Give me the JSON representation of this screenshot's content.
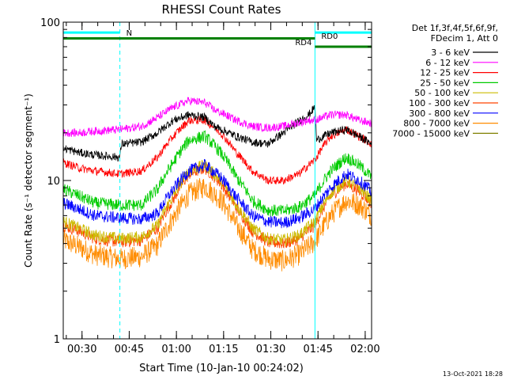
{
  "chart_data": {
    "type": "line",
    "title": "RHESSI Count Rates",
    "xlabel": "Start Time (10-Jan-10 00:24:02)",
    "ylabel": "Count Rate (s⁻¹ detector segment⁻¹)",
    "yscale": "log",
    "ylim": [
      1,
      100
    ],
    "xlim_minutes_after_start": [
      0,
      98
    ],
    "x_ticks": [
      "00:30",
      "00:45",
      "01:00",
      "01:15",
      "01:30",
      "01:45",
      "02:00"
    ],
    "y_ticks": [
      "1",
      "10",
      "100"
    ],
    "x_unit": "minutes after 00:24:02",
    "legend_header": [
      "Det 1f,3f,4f,5f,6f,9f,",
      "FDecim 1, Att 0"
    ],
    "legend_position": "right",
    "footer": "13-Oct-2021 18:28",
    "annotations": {
      "night_label": "N",
      "saa_labels": [
        "RD0",
        "RD4"
      ],
      "night_bars": [
        [
          0,
          18
        ],
        [
          80,
          98
        ]
      ],
      "night_bar_level": 86,
      "rd0_bar": [
        0,
        80
      ],
      "rd0_level": 79,
      "rd4_bar": [
        80,
        98
      ],
      "rd4_level": 70,
      "cyan_vlines": [
        0,
        80
      ],
      "dashed_vlines": [
        18,
        98
      ],
      "colors": {
        "night": "#00ffff",
        "saa": "#008000"
      }
    },
    "series": [
      {
        "name": "3 - 6 keV",
        "color": "#000000",
        "x": [
          0,
          5,
          10,
          18,
          18.5,
          25,
          30,
          35,
          40,
          45,
          48,
          55,
          60,
          65,
          70,
          78,
          80,
          80.5,
          85,
          90,
          94,
          98
        ],
        "y": [
          16,
          15,
          14.5,
          14,
          17,
          17.5,
          20,
          24,
          26,
          25,
          22,
          19,
          17.5,
          17,
          20,
          26,
          29,
          18,
          20,
          21,
          19,
          17
        ]
      },
      {
        "name": "6 - 12 keV",
        "color": "#ff00ff",
        "x": [
          0,
          5,
          10,
          18,
          25,
          30,
          35,
          40,
          45,
          48,
          55,
          60,
          65,
          70,
          78,
          80,
          85,
          90,
          94,
          98
        ],
        "y": [
          20,
          20,
          20.5,
          21,
          22,
          25,
          29,
          32,
          31,
          28,
          24,
          22,
          21.5,
          22,
          24,
          24,
          26,
          26,
          24,
          23
        ]
      },
      {
        "name": "12 - 25 keV",
        "color": "#ff0000",
        "x": [
          0,
          5,
          10,
          18,
          25,
          30,
          35,
          40,
          45,
          50,
          55,
          60,
          65,
          70,
          75,
          80,
          85,
          90,
          94,
          98
        ],
        "y": [
          13,
          12,
          11.5,
          11,
          11.5,
          14,
          19,
          24,
          24,
          20,
          15,
          11.5,
          10,
          10,
          11,
          13.5,
          19,
          21,
          19,
          17
        ]
      },
      {
        "name": "25 - 50 keV",
        "color": "#00cc00",
        "x": [
          0,
          5,
          10,
          18,
          25,
          30,
          35,
          40,
          45,
          50,
          55,
          60,
          65,
          70,
          75,
          80,
          85,
          90,
          94,
          98
        ],
        "y": [
          8.8,
          8,
          7.2,
          7,
          7,
          8.8,
          13,
          18,
          19,
          15,
          10.5,
          7.5,
          6.5,
          6.4,
          6.8,
          8,
          11.5,
          14,
          12.5,
          10.5
        ]
      },
      {
        "name": "50 - 100 keV",
        "color": "#ccbb00",
        "x": [
          0,
          5,
          10,
          18,
          25,
          30,
          35,
          40,
          45,
          50,
          55,
          60,
          65,
          70,
          75,
          80,
          85,
          90,
          94,
          98
        ],
        "y": [
          5.5,
          5,
          4.5,
          4.3,
          4.4,
          5.2,
          8,
          11.5,
          12.5,
          10,
          7,
          5,
          4.3,
          4.2,
          4.5,
          5.5,
          8.3,
          10,
          9,
          7.5
        ]
      },
      {
        "name": "100 - 300 keV",
        "color": "#ff4400",
        "x": [
          0,
          5,
          10,
          18,
          25,
          30,
          35,
          40,
          45,
          50,
          55,
          60,
          65,
          70,
          75,
          80,
          85,
          90,
          94,
          98
        ],
        "y": [
          5.2,
          4.8,
          4.3,
          4.1,
          4.2,
          5,
          7.6,
          11,
          12,
          9.6,
          6.7,
          4.8,
          4.1,
          4,
          4.3,
          5.2,
          8,
          9.6,
          8.6,
          7.2
        ]
      },
      {
        "name": "300 - 800 keV",
        "color": "#0000ff",
        "x": [
          0,
          5,
          10,
          18,
          25,
          30,
          35,
          40,
          45,
          50,
          55,
          60,
          65,
          70,
          75,
          80,
          85,
          90,
          94,
          98
        ],
        "y": [
          7.2,
          6.6,
          6,
          5.8,
          5.7,
          6.2,
          8.8,
          11.5,
          12.5,
          10.5,
          7.8,
          6,
          5.5,
          5.4,
          5.8,
          6.6,
          9,
          11,
          10,
          8.5
        ]
      },
      {
        "name": "800 - 7000 keV",
        "color": "#ff8c00",
        "x": [
          0,
          5,
          10,
          18,
          25,
          30,
          35,
          40,
          45,
          50,
          55,
          60,
          65,
          70,
          75,
          80,
          85,
          90,
          94,
          98
        ],
        "y": [
          4.2,
          3.8,
          3.4,
          3.2,
          3.3,
          3.9,
          5.8,
          8.2,
          9.2,
          7.6,
          5.2,
          3.7,
          3.2,
          3.1,
          3.4,
          4.1,
          6,
          7.5,
          7,
          6
        ]
      },
      {
        "name": "7000 - 15000 keV",
        "color": "#808000",
        "x": [],
        "y": []
      }
    ]
  }
}
